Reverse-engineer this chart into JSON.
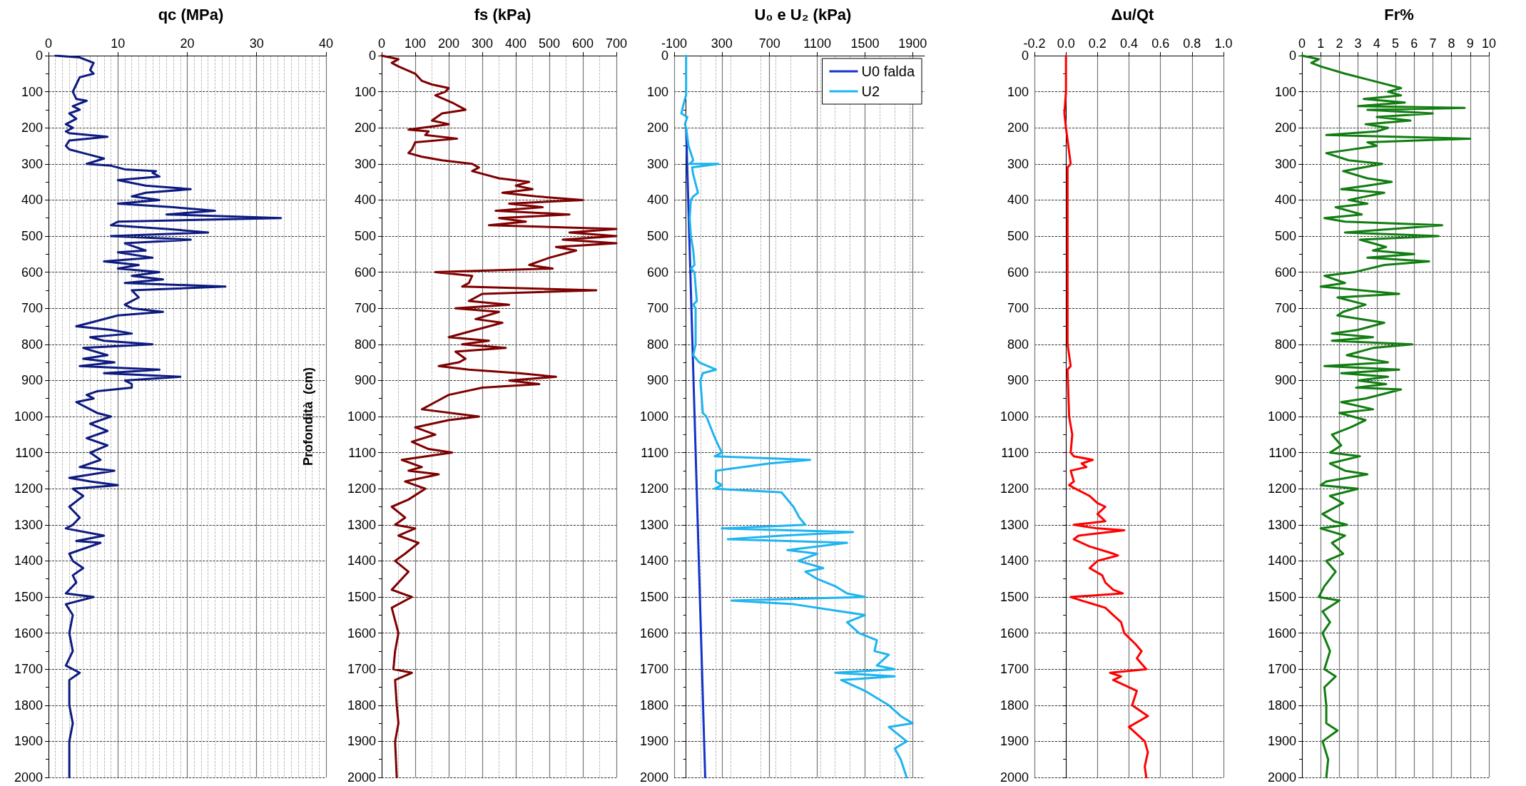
{
  "chart_data": [
    {
      "type": "line",
      "title": "qc (MPa)",
      "ylabel": "Profondità  (cm)",
      "xlim": [
        0,
        40
      ],
      "xticks": [
        0,
        10,
        20,
        30,
        40
      ],
      "ylim": [
        2000,
        0
      ],
      "yticks": [
        0,
        100,
        200,
        300,
        400,
        500,
        600,
        700,
        800,
        900,
        1000,
        1100,
        1200,
        1300,
        1400,
        1500,
        1600,
        1700,
        1800,
        1900,
        2000
      ],
      "grid": true,
      "legend": false,
      "series": [
        {
          "color": "#0d1a80",
          "x": [
            1,
            4.5,
            6.5,
            6,
            6.5,
            4.5,
            4,
            3.5,
            4,
            5.5,
            3.5,
            4.5,
            3,
            4,
            2.5,
            3.5,
            2.5,
            3,
            8.5,
            3,
            2.5,
            3,
            6,
            8,
            5.5,
            9,
            11,
            15.5,
            15,
            16,
            10,
            14,
            20.5,
            14,
            12,
            16,
            10,
            18,
            24,
            17,
            33.5,
            10,
            9,
            17,
            23,
            9,
            20.5,
            11,
            14,
            10,
            15,
            8,
            13,
            10,
            16,
            12,
            16.5,
            11,
            25.5,
            12,
            13,
            11,
            12,
            16.5,
            10,
            6,
            4,
            9,
            12,
            6,
            8,
            15,
            5,
            8.5,
            5,
            9.5,
            4.5,
            16,
            8,
            19,
            11,
            12,
            12,
            7,
            5.5,
            6.5,
            4,
            6,
            7,
            9,
            6,
            8.5,
            5.5,
            8.5,
            6,
            7.5,
            4.5,
            9.5,
            3,
            6,
            10,
            3.5,
            5,
            3,
            4.5,
            3.5,
            2.5,
            8,
            4,
            7.5,
            3,
            3.5,
            5,
            3.5,
            4,
            2.5,
            6.5,
            2.5,
            3.5,
            3,
            3.5,
            2.5,
            4.5,
            3,
            3,
            3.5,
            3,
            3
          ],
          "values": [
            0,
            5,
            20,
            40,
            50,
            60,
            80,
            100,
            120,
            125,
            140,
            150,
            160,
            175,
            190,
            200,
            210,
            215,
            225,
            235,
            250,
            260,
            275,
            285,
            300,
            305,
            315,
            320,
            325,
            335,
            345,
            360,
            370,
            380,
            390,
            400,
            410,
            420,
            430,
            440,
            450,
            460,
            470,
            480,
            490,
            500,
            510,
            520,
            540,
            545,
            560,
            570,
            580,
            590,
            600,
            610,
            620,
            630,
            640,
            650,
            670,
            690,
            700,
            710,
            720,
            740,
            750,
            760,
            770,
            780,
            790,
            800,
            810,
            830,
            840,
            850,
            860,
            870,
            880,
            890,
            900,
            910,
            920,
            930,
            940,
            950,
            960,
            980,
            990,
            1000,
            1020,
            1040,
            1060,
            1080,
            1100,
            1120,
            1140,
            1150,
            1170,
            1180,
            1190,
            1200,
            1220,
            1250,
            1280,
            1300,
            1310,
            1330,
            1345,
            1350,
            1380,
            1400,
            1420,
            1440,
            1460,
            1490,
            1500,
            1520,
            1550,
            1600,
            1650,
            1690,
            1710,
            1730,
            1800,
            1850,
            1900,
            2000
          ]
        }
      ]
    },
    {
      "type": "line",
      "title": "fs (kPa)",
      "xlim": [
        0,
        700
      ],
      "xticks": [
        0,
        100,
        200,
        300,
        400,
        500,
        600,
        700
      ],
      "ylim": [
        2000,
        0
      ],
      "yticks": [
        0,
        100,
        200,
        300,
        400,
        500,
        600,
        700,
        800,
        900,
        1000,
        1100,
        1200,
        1300,
        1400,
        1500,
        1600,
        1700,
        1800,
        1900,
        2000
      ],
      "grid": true,
      "legend": false,
      "series": [
        {
          "color": "#7f0000",
          "x": [
            0,
            50,
            30,
            50,
            100,
            120,
            150,
            200,
            190,
            160,
            210,
            250,
            180,
            150,
            200,
            120,
            80,
            140,
            130,
            225,
            100,
            90,
            80,
            120,
            180,
            270,
            290,
            270,
            350,
            440,
            400,
            450,
            360,
            460,
            600,
            380,
            480,
            340,
            560,
            350,
            430,
            320,
            700,
            560,
            700,
            540,
            700,
            520,
            580,
            500,
            440,
            510,
            160,
            270,
            260,
            240,
            640,
            300,
            260,
            380,
            220,
            350,
            280,
            360,
            280,
            200,
            320,
            240,
            370,
            220,
            250,
            230,
            170,
            260,
            410,
            520,
            380,
            470,
            300,
            200,
            160,
            120,
            290,
            200,
            100,
            160,
            90,
            140,
            210,
            60,
            120,
            80,
            170,
            70,
            130,
            80,
            30,
            70,
            40,
            100,
            50,
            110,
            70,
            40,
            80,
            50,
            30,
            90,
            30,
            50,
            40,
            35,
            90,
            40,
            45,
            50,
            40,
            45
          ],
          "values": [
            0,
            10,
            20,
            30,
            50,
            70,
            80,
            90,
            100,
            110,
            130,
            150,
            160,
            180,
            190,
            200,
            205,
            210,
            220,
            230,
            240,
            260,
            270,
            280,
            290,
            300,
            310,
            320,
            340,
            350,
            360,
            370,
            380,
            390,
            400,
            410,
            420,
            430,
            440,
            450,
            460,
            470,
            480,
            490,
            500,
            510,
            520,
            530,
            540,
            560,
            580,
            590,
            600,
            610,
            630,
            640,
            650,
            660,
            680,
            690,
            700,
            710,
            730,
            740,
            760,
            780,
            790,
            800,
            810,
            820,
            840,
            850,
            860,
            870,
            880,
            890,
            900,
            910,
            920,
            940,
            960,
            980,
            1000,
            1010,
            1030,
            1050,
            1070,
            1090,
            1100,
            1120,
            1140,
            1150,
            1160,
            1180,
            1200,
            1230,
            1250,
            1280,
            1300,
            1310,
            1330,
            1350,
            1380,
            1400,
            1430,
            1460,
            1480,
            1500,
            1530,
            1600,
            1650,
            1700,
            1710,
            1730,
            1800,
            1850,
            1900,
            2000
          ]
        }
      ]
    },
    {
      "type": "line",
      "title": "U₀ e U₂ (kPa)",
      "xlim": [
        -100,
        2000
      ],
      "xticks": [
        -100,
        300,
        700,
        1100,
        1500,
        1900
      ],
      "ylim": [
        2000,
        0
      ],
      "yticks": [
        0,
        100,
        200,
        300,
        400,
        500,
        600,
        700,
        800,
        900,
        1000,
        1100,
        1200,
        1300,
        1400,
        1500,
        1600,
        1700,
        1800,
        1900,
        2000
      ],
      "grid": true,
      "legend": "top right",
      "series": [
        {
          "name": "U0 falda",
          "color": "#1433c8",
          "x": [
            0,
            160
          ],
          "values": [
            200,
            2000
          ]
        },
        {
          "name": "U2",
          "color": "#1eb4f0",
          "x": [
            0,
            0,
            -10,
            -40,
            10,
            -10,
            0,
            20,
            60,
            30,
            270,
            50,
            60,
            100,
            60,
            40,
            30,
            40,
            60,
            70,
            40,
            70,
            90,
            60,
            80,
            80,
            60,
            110,
            250,
            140,
            120,
            140,
            170,
            230,
            270,
            300,
            240,
            1040,
            700,
            250,
            250,
            300,
            240,
            800,
            900,
            950,
            1000,
            300,
            1400,
            800,
            350,
            1350,
            850,
            1100,
            940,
            1150,
            1000,
            1100,
            1250,
            1350,
            1500,
            380,
            900,
            1300,
            1500,
            1350,
            1450,
            1600,
            1580,
            1700,
            1600,
            1750,
            1250,
            1750,
            1300,
            1500,
            1650,
            1700,
            1800,
            1900,
            1700,
            1850,
            1750,
            1800,
            1850
          ],
          "values": [
            0,
            110,
            120,
            160,
            170,
            190,
            200,
            250,
            290,
            300,
            300,
            310,
            330,
            380,
            390,
            400,
            450,
            500,
            540,
            580,
            590,
            600,
            680,
            690,
            700,
            800,
            830,
            850,
            870,
            880,
            900,
            990,
            1000,
            1050,
            1080,
            1100,
            1110,
            1120,
            1130,
            1150,
            1180,
            1190,
            1200,
            1210,
            1250,
            1280,
            1300,
            1310,
            1320,
            1330,
            1340,
            1350,
            1370,
            1380,
            1400,
            1420,
            1430,
            1450,
            1470,
            1490,
            1500,
            1510,
            1520,
            1540,
            1550,
            1570,
            1600,
            1620,
            1650,
            1660,
            1690,
            1700,
            1710,
            1720,
            1730,
            1760,
            1790,
            1800,
            1830,
            1850,
            1860,
            1900,
            1920,
            1950,
            2000
          ]
        }
      ]
    },
    {
      "type": "line",
      "title": "Δu/Qt",
      "xlim": [
        -0.2,
        1
      ],
      "xticks": [
        -0.2,
        {
          "value": 0,
          "label": "0.0"
        },
        0.2,
        0.4,
        0.6,
        0.8,
        {
          "value": 1,
          "label": "1.0"
        }
      ],
      "ylim": [
        2000,
        0
      ],
      "yticks": [
        0,
        100,
        200,
        300,
        400,
        500,
        600,
        700,
        800,
        900,
        1000,
        1100,
        1200,
        1300,
        1400,
        1500,
        1600,
        1700,
        1800,
        1900,
        2000
      ],
      "grid": true,
      "legend": false,
      "series": [
        {
          "color": "#ff0000",
          "x": [
            0,
            0,
            -0.01,
            0,
            0.03,
            0.01,
            0.01,
            0.01,
            0.03,
            0.01,
            0.02,
            0.04,
            0.03,
            0.05,
            0.17,
            0.1,
            0.13,
            0.03,
            0.05,
            0.02,
            0.06,
            0.15,
            0.2,
            0.25,
            0.2,
            0.25,
            0.05,
            0.2,
            0.37,
            0.08,
            0.05,
            0.15,
            0.3,
            0.33,
            0.2,
            0.15,
            0.23,
            0.25,
            0.3,
            0.36,
            0.03,
            0.1,
            0.25,
            0.3,
            0.35,
            0.37,
            0.44,
            0.48,
            0.45,
            0.51,
            0.28,
            0.35,
            0.3,
            0.45,
            0.42,
            0.52,
            0.4,
            0.5,
            0.52,
            0.5,
            0.51
          ],
          "values": [
            0,
            100,
            160,
            200,
            300,
            310,
            400,
            800,
            860,
            870,
            1000,
            1050,
            1100,
            1110,
            1120,
            1130,
            1140,
            1150,
            1180,
            1190,
            1200,
            1220,
            1240,
            1250,
            1270,
            1290,
            1300,
            1310,
            1315,
            1330,
            1340,
            1360,
            1380,
            1385,
            1400,
            1420,
            1440,
            1460,
            1480,
            1490,
            1500,
            1510,
            1530,
            1550,
            1570,
            1600,
            1630,
            1650,
            1670,
            1700,
            1710,
            1720,
            1730,
            1760,
            1800,
            1830,
            1860,
            1900,
            1930,
            1970,
            2000
          ]
        }
      ]
    },
    {
      "type": "line",
      "title": "Fr%",
      "xlim": [
        0,
        10
      ],
      "xticks": [
        0,
        1,
        2,
        3,
        4,
        5,
        6,
        7,
        8,
        9,
        10
      ],
      "ylim": [
        2000,
        0
      ],
      "yticks": [
        0,
        100,
        200,
        300,
        400,
        500,
        600,
        700,
        800,
        900,
        1000,
        1100,
        1200,
        1300,
        1400,
        1500,
        1600,
        1700,
        1800,
        1900,
        2000
      ],
      "grid": true,
      "legend": false,
      "series": [
        {
          "color": "#117d11",
          "x": [
            0,
            0.9,
            0.5,
            1,
            2.3,
            3.8,
            5.3,
            4.6,
            5.3,
            3.3,
            5.5,
            3,
            8.7,
            3.5,
            7,
            4,
            5.8,
            3.4,
            4.6,
            4,
            1.3,
            9,
            3.5,
            4,
            1.3,
            2.5,
            4.3,
            2.2,
            3.5,
            4.8,
            3.5,
            2.1,
            4.4,
            2.5,
            3.5,
            1.8,
            3.2,
            1.2,
            2.3,
            7.5,
            2.3,
            7.3,
            3.1,
            4.5,
            3.8,
            6,
            3.5,
            6.8,
            4.4,
            2.8,
            1.2,
            2.3,
            1,
            5.2,
            1.9,
            3.4,
            2.2,
            1.9,
            4.4,
            3,
            1.6,
            3.8,
            1.6,
            5.9,
            3.8,
            2.4,
            4.6,
            1.2,
            5.2,
            2.1,
            4.6,
            3,
            4.5,
            2.9,
            5.3,
            3.4,
            2.1,
            3.8,
            2,
            3.4,
            2.6,
            1.6,
            2.1,
            1.5,
            3.1,
            1.5,
            2.3,
            3.5,
            1.3,
            1,
            3,
            1.5,
            2.2,
            1.1,
            1.7,
            2.4,
            1,
            2.3,
            1.6,
            2.2,
            1.3,
            1.8,
            1.2,
            0.9,
            2,
            1.1,
            1.5,
            1.1,
            1.5,
            1.2,
            1.8,
            1.2,
            1.3,
            1.3,
            1.9,
            1.1,
            1.4,
            1.3
          ],
          "values": [
            0,
            10,
            20,
            30,
            50,
            70,
            90,
            100,
            110,
            120,
            130,
            140,
            145,
            150,
            160,
            170,
            180,
            190,
            200,
            210,
            220,
            230,
            240,
            250,
            270,
            290,
            300,
            320,
            340,
            350,
            360,
            370,
            380,
            400,
            410,
            420,
            440,
            450,
            460,
            470,
            490,
            500,
            510,
            530,
            540,
            550,
            560,
            570,
            580,
            600,
            610,
            630,
            640,
            660,
            670,
            690,
            710,
            720,
            740,
            760,
            770,
            780,
            790,
            800,
            810,
            830,
            850,
            860,
            870,
            880,
            890,
            900,
            910,
            920,
            925,
            950,
            960,
            980,
            990,
            1010,
            1030,
            1050,
            1080,
            1100,
            1110,
            1130,
            1150,
            1160,
            1180,
            1190,
            1200,
            1220,
            1240,
            1270,
            1290,
            1300,
            1310,
            1330,
            1350,
            1380,
            1400,
            1430,
            1470,
            1500,
            1510,
            1540,
            1570,
            1600,
            1650,
            1700,
            1720,
            1750,
            1800,
            1850,
            1870,
            1900,
            1950,
            2000
          ]
        }
      ]
    }
  ]
}
